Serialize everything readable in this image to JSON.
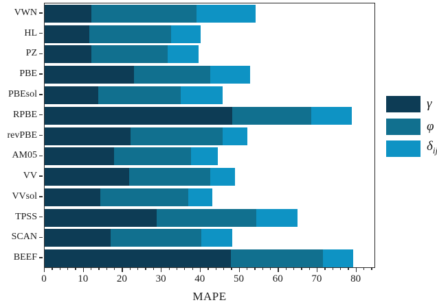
{
  "chart_data": {
    "type": "bar",
    "orientation": "horizontal",
    "stacked": true,
    "title": "",
    "xlabel": "MAPE",
    "ylabel": "",
    "xlim": [
      0,
      85
    ],
    "x_major_ticks": [
      0,
      10,
      20,
      30,
      40,
      50,
      60,
      70,
      80
    ],
    "x_minor_tick_step": 2,
    "grid": false,
    "legend_position": "right-center",
    "frame_color": "#2b2b2b",
    "categories": [
      "VWN",
      "HL",
      "PZ",
      "PBE",
      "PBEsol",
      "RPBE",
      "revPBE",
      "AM05",
      "VV",
      "VVsol",
      "TPSS",
      "SCAN",
      "BEEF"
    ],
    "series": [
      {
        "name": "γ",
        "subscript": "",
        "color": "#0d3c55",
        "values": [
          12.0,
          11.5,
          11.9,
          23.0,
          13.8,
          48.2,
          22.1,
          17.8,
          21.7,
          14.2,
          28.8,
          17.0,
          47.8
        ]
      },
      {
        "name": "φ",
        "subscript": "",
        "color": "#11708f",
        "values": [
          26.9,
          20.9,
          19.6,
          19.5,
          21.1,
          20.2,
          23.5,
          19.8,
          20.8,
          22.6,
          25.6,
          23.3,
          23.6
        ]
      },
      {
        "name": "δ",
        "subscript": "ij",
        "color": "#0e93c4",
        "values": [
          15.2,
          7.7,
          8.0,
          10.3,
          10.7,
          10.4,
          6.4,
          6.9,
          6.4,
          6.3,
          10.5,
          7.8,
          7.7
        ]
      }
    ],
    "totals": [
      54.1,
      40.1,
      39.5,
      52.8,
      45.6,
      78.8,
      52.0,
      44.5,
      48.9,
      43.1,
      64.9,
      48.1,
      79.1
    ]
  }
}
